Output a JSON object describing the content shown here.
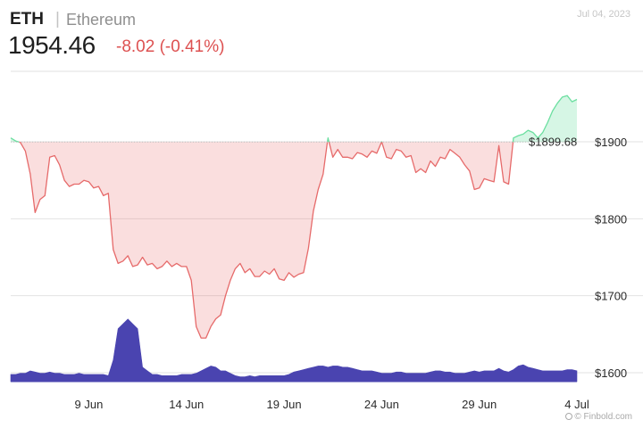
{
  "header": {
    "symbol": "ETH",
    "separator": "|",
    "name": "Ethereum",
    "date": "Jul 04, 2023",
    "price": "1954.46",
    "change": "-8.02 (-0.41%)"
  },
  "credit": "© Finbold.com",
  "colors": {
    "up": "#6bdfa0",
    "down": "#e66a6a",
    "volume": "#4a44b0",
    "grid": "#e2e2e2",
    "reference": "#bdbdbd"
  },
  "chart_data": {
    "type": "line",
    "reference": {
      "value": 1899.68,
      "label": "$1899.68"
    },
    "y_ticks": [
      1900,
      1800,
      1700,
      1600
    ],
    "y_tick_labels": [
      "$1900",
      "$1800",
      "$1700",
      "$1600"
    ],
    "ylim": [
      1570,
      1985
    ],
    "xlim": [
      "2023-06-05",
      "2023-07-04"
    ],
    "x_ticks": [
      "2023-06-09",
      "2023-06-14",
      "2023-06-19",
      "2023-06-24",
      "2023-06-29",
      "2023-07-04"
    ],
    "x_tick_labels": [
      "9 Jun",
      "14 Jun",
      "19 Jun",
      "24 Jun",
      "29 Jun",
      "4 Jul"
    ],
    "grid": true,
    "series": [
      {
        "x": [
          "2023-06-05",
          "2023-06-05 06:00",
          "2023-06-05 12:00",
          "2023-06-05 18:00",
          "2023-06-06",
          "2023-06-06 06:00",
          "2023-06-06 12:00",
          "2023-06-06 18:00",
          "2023-06-07",
          "2023-06-07 06:00",
          "2023-06-07 12:00",
          "2023-06-07 18:00",
          "2023-06-08",
          "2023-06-08 06:00",
          "2023-06-08 12:00",
          "2023-06-08 18:00",
          "2023-06-09",
          "2023-06-09 06:00",
          "2023-06-09 12:00",
          "2023-06-09 18:00",
          "2023-06-10",
          "2023-06-10 06:00",
          "2023-06-10 12:00",
          "2023-06-10 18:00",
          "2023-06-11",
          "2023-06-11 06:00",
          "2023-06-11 12:00",
          "2023-06-11 18:00",
          "2023-06-12",
          "2023-06-12 06:00",
          "2023-06-12 12:00",
          "2023-06-12 18:00",
          "2023-06-13",
          "2023-06-13 06:00",
          "2023-06-13 12:00",
          "2023-06-13 18:00",
          "2023-06-14",
          "2023-06-14 06:00",
          "2023-06-14 12:00",
          "2023-06-14 18:00",
          "2023-06-15",
          "2023-06-15 06:00",
          "2023-06-15 12:00",
          "2023-06-15 18:00",
          "2023-06-16",
          "2023-06-16 06:00",
          "2023-06-16 12:00",
          "2023-06-16 18:00",
          "2023-06-17",
          "2023-06-17 06:00",
          "2023-06-17 12:00",
          "2023-06-17 18:00",
          "2023-06-18",
          "2023-06-18 06:00",
          "2023-06-18 12:00",
          "2023-06-18 18:00",
          "2023-06-19",
          "2023-06-19 06:00",
          "2023-06-19 12:00",
          "2023-06-19 18:00",
          "2023-06-20",
          "2023-06-20 06:00",
          "2023-06-20 12:00",
          "2023-06-20 18:00",
          "2023-06-21",
          "2023-06-21 06:00",
          "2023-06-21 12:00",
          "2023-06-21 18:00",
          "2023-06-22",
          "2023-06-22 06:00",
          "2023-06-22 12:00",
          "2023-06-22 18:00",
          "2023-06-23",
          "2023-06-23 06:00",
          "2023-06-23 12:00",
          "2023-06-23 18:00",
          "2023-06-24",
          "2023-06-24 06:00",
          "2023-06-24 12:00",
          "2023-06-24 18:00",
          "2023-06-25",
          "2023-06-25 06:00",
          "2023-06-25 12:00",
          "2023-06-25 18:00",
          "2023-06-26",
          "2023-06-26 06:00",
          "2023-06-26 12:00",
          "2023-06-26 18:00",
          "2023-06-27",
          "2023-06-27 06:00",
          "2023-06-27 12:00",
          "2023-06-27 18:00",
          "2023-06-28",
          "2023-06-28 06:00",
          "2023-06-28 12:00",
          "2023-06-28 18:00",
          "2023-06-29",
          "2023-06-29 06:00",
          "2023-06-29 12:00",
          "2023-06-29 18:00",
          "2023-06-30",
          "2023-06-30 06:00",
          "2023-06-30 12:00",
          "2023-06-30 18:00",
          "2023-07-01",
          "2023-07-01 06:00",
          "2023-07-01 12:00",
          "2023-07-01 18:00",
          "2023-07-02",
          "2023-07-02 06:00",
          "2023-07-02 12:00",
          "2023-07-02 18:00",
          "2023-07-03",
          "2023-07-03 06:00",
          "2023-07-03 12:00",
          "2023-07-03 18:00",
          "2023-07-04"
        ],
        "y": [
          1905,
          1901,
          1899,
          1888,
          1858,
          1808,
          1825,
          1830,
          1880,
          1882,
          1870,
          1850,
          1842,
          1845,
          1845,
          1850,
          1848,
          1840,
          1842,
          1830,
          1833,
          1760,
          1742,
          1745,
          1752,
          1738,
          1740,
          1750,
          1740,
          1742,
          1735,
          1738,
          1745,
          1738,
          1742,
          1738,
          1738,
          1720,
          1660,
          1645,
          1645,
          1660,
          1670,
          1675,
          1700,
          1720,
          1735,
          1742,
          1730,
          1735,
          1725,
          1725,
          1732,
          1728,
          1735,
          1722,
          1720,
          1730,
          1724,
          1728,
          1730,
          1762,
          1810,
          1838,
          1858,
          1905,
          1880,
          1890,
          1880,
          1880,
          1878,
          1886,
          1884,
          1880,
          1888,
          1885,
          1900,
          1880,
          1878,
          1890,
          1888,
          1880,
          1882,
          1860,
          1865,
          1860,
          1875,
          1868,
          1880,
          1878,
          1890,
          1885,
          1880,
          1870,
          1862,
          1838,
          1840,
          1852,
          1850,
          1848,
          1895,
          1848,
          1845,
          1905,
          1908,
          1910,
          1915,
          1912,
          1905,
          1912,
          1925,
          1940,
          1950,
          1958,
          1960,
          1952,
          1955
        ]
      }
    ],
    "volume_values": [
      6,
      6,
      7,
      7,
      9,
      8,
      7,
      7,
      8,
      7,
      7,
      6,
      6,
      6,
      7,
      6,
      6,
      6,
      6,
      6,
      5,
      18,
      44,
      48,
      52,
      48,
      44,
      12,
      9,
      6,
      6,
      5,
      5,
      5,
      5,
      6,
      6,
      6,
      7,
      9,
      11,
      13,
      12,
      9,
      9,
      7,
      5,
      4,
      4,
      5,
      4,
      5,
      5,
      5,
      5,
      5,
      5,
      6,
      8,
      9,
      10,
      11,
      12,
      13,
      13,
      12,
      13,
      13,
      12,
      12,
      11,
      10,
      9,
      9,
      9,
      8,
      7,
      7,
      7,
      8,
      8,
      7,
      7,
      7,
      7,
      7,
      8,
      9,
      9,
      8,
      8,
      7,
      7,
      7,
      8,
      9,
      8,
      9,
      9,
      9,
      11,
      9,
      8,
      10,
      13,
      14,
      12,
      11,
      10,
      9,
      9,
      9,
      9,
      9,
      10,
      10,
      9
    ],
    "volume_colors_by_side": true
  }
}
